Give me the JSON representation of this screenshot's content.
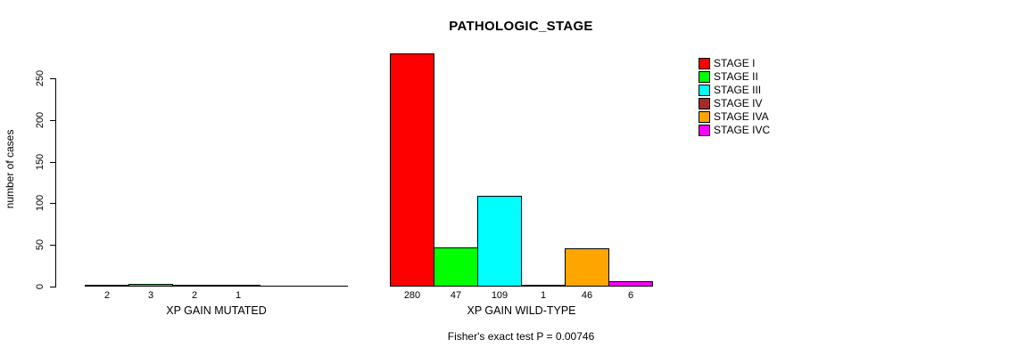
{
  "chart_data": {
    "type": "bar",
    "title": "PATHOLOGIC_STAGE",
    "ylabel": "number of cases",
    "ylim": [
      0,
      250
    ],
    "yticks": [
      0,
      50,
      100,
      150,
      200,
      250
    ],
    "grid": false,
    "legend_position": "right",
    "categories": [
      "STAGE I",
      "STAGE II",
      "STAGE III",
      "STAGE IV",
      "STAGE IVA",
      "STAGE IVC"
    ],
    "colors": [
      "#ff0000",
      "#00ff00",
      "#00ffff",
      "#a52a2a",
      "#ffa500",
      "#ff00ff"
    ],
    "groups": [
      {
        "label": "XP GAIN MUTATED",
        "values": [
          2,
          3,
          2,
          1,
          0,
          0
        ],
        "bar_labels": [
          "2",
          "3",
          "2",
          "1",
          "",
          ""
        ]
      },
      {
        "label": "XP GAIN WILD-TYPE",
        "values": [
          280,
          47,
          109,
          1,
          46,
          6
        ],
        "bar_labels": [
          "280",
          "47",
          "109",
          "1",
          "46",
          "6"
        ]
      }
    ],
    "legend": {
      "entries": [
        {
          "label": "STAGE I",
          "color": "#ff0000"
        },
        {
          "label": "STAGE II",
          "color": "#00ff00"
        },
        {
          "label": "STAGE III",
          "color": "#00ffff"
        },
        {
          "label": "STAGE IV",
          "color": "#a52a2a"
        },
        {
          "label": "STAGE IVA",
          "color": "#ffa500"
        },
        {
          "label": "STAGE IVC",
          "color": "#ff00ff"
        }
      ]
    },
    "annotation": "Fisher's exact test P = 0.00746"
  }
}
